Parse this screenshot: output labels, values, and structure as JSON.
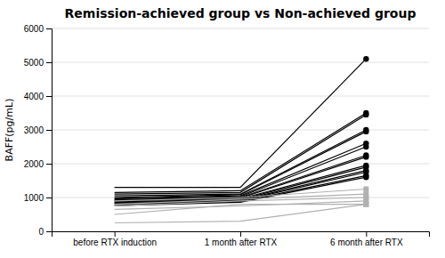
{
  "chart_data": {
    "type": "line",
    "title": "Remission-achieved group vs Non-achieved group",
    "ylabel": "BAFF(pg/mL)",
    "categories": [
      "before RTX induction",
      "1 month after RTX",
      "6 month after RTX"
    ],
    "ylim": [
      0,
      6000
    ],
    "yticks": [
      0,
      1000,
      2000,
      3000,
      4000,
      5000,
      6000
    ],
    "grid": true,
    "series": [
      {
        "color": "#000000",
        "marker": "circle",
        "values": [
          1300,
          1300,
          5100
        ]
      },
      {
        "color": "#000000",
        "marker": "circle",
        "values": [
          1150,
          1200,
          3500
        ]
      },
      {
        "color": "#000000",
        "marker": "circle",
        "values": [
          1100,
          1150,
          3450
        ]
      },
      {
        "color": "#000000",
        "marker": "circle",
        "values": [
          1050,
          1100,
          3000
        ]
      },
      {
        "color": "#000000",
        "marker": "circle",
        "values": [
          1000,
          1080,
          2950
        ]
      },
      {
        "color": "#000000",
        "marker": "circle",
        "values": [
          980,
          1050,
          2600
        ]
      },
      {
        "color": "#000000",
        "marker": "circle",
        "values": [
          960,
          1020,
          2500
        ]
      },
      {
        "color": "#000000",
        "marker": "circle",
        "values": [
          940,
          1000,
          2250
        ]
      },
      {
        "color": "#000000",
        "marker": "circle",
        "values": [
          920,
          980,
          2200
        ]
      },
      {
        "color": "#000000",
        "marker": "circle",
        "values": [
          900,
          960,
          1950
        ]
      },
      {
        "color": "#000000",
        "marker": "circle",
        "values": [
          870,
          940,
          1900
        ]
      },
      {
        "color": "#000000",
        "marker": "circle",
        "values": [
          850,
          920,
          1800
        ]
      },
      {
        "color": "#000000",
        "marker": "circle",
        "values": [
          830,
          900,
          1750
        ]
      },
      {
        "color": "#000000",
        "marker": "circle",
        "values": [
          800,
          880,
          1650
        ]
      },
      {
        "color": "#000000",
        "marker": "circle",
        "values": [
          760,
          860,
          1600
        ]
      },
      {
        "color": "#b0b0b0",
        "marker": "square",
        "values": [
          900,
          1000,
          1250
        ]
      },
      {
        "color": "#b0b0b0",
        "marker": "square",
        "values": [
          800,
          950,
          1100
        ]
      },
      {
        "color": "#b0b0b0",
        "marker": "square",
        "values": [
          750,
          900,
          1000
        ]
      },
      {
        "color": "#b0b0b0",
        "marker": "square",
        "values": [
          650,
          750,
          900
        ]
      },
      {
        "color": "#b0b0b0",
        "marker": "square",
        "values": [
          500,
          800,
          800
        ]
      },
      {
        "color": "#b0b0b0",
        "marker": "square",
        "values": [
          250,
          300,
          800
        ]
      }
    ]
  }
}
